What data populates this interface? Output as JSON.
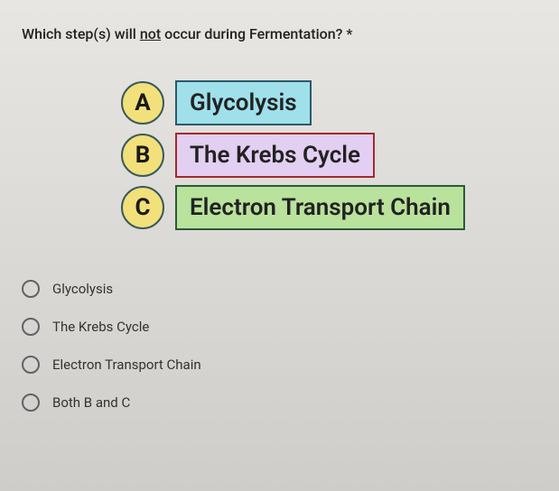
{
  "question": {
    "prefix": "Which step(s) will ",
    "underlined": "not",
    "suffix": " occur during Fermentation? *"
  },
  "diagram": {
    "rows": [
      {
        "letter": "A",
        "label": "Glycolysis",
        "circle_fill": "#f2e07a",
        "circle_border": "#3a5a5a",
        "box_fill": "#9fe0eb",
        "box_border": "#2b5a6a"
      },
      {
        "letter": "B",
        "label": "The Krebs Cycle",
        "circle_fill": "#f2e07a",
        "circle_border": "#3a5a5a",
        "box_fill": "#e3cff1",
        "box_border": "#a12a2a"
      },
      {
        "letter": "C",
        "label": "Electron Transport Chain",
        "circle_fill": "#f2e07a",
        "circle_border": "#3a5a5a",
        "box_fill": "#b9e29c",
        "box_border": "#2b5a3a"
      }
    ],
    "letter_fontsize": 26,
    "label_fontsize": 26,
    "label_weight": 600
  },
  "options": [
    {
      "label": "Glycolysis"
    },
    {
      "label": "The Krebs Cycle"
    },
    {
      "label": "Electron Transport Chain"
    },
    {
      "label": "Both B and C"
    }
  ],
  "colors": {
    "text": "#1a1a1a",
    "radio_border": "#5f6368"
  }
}
